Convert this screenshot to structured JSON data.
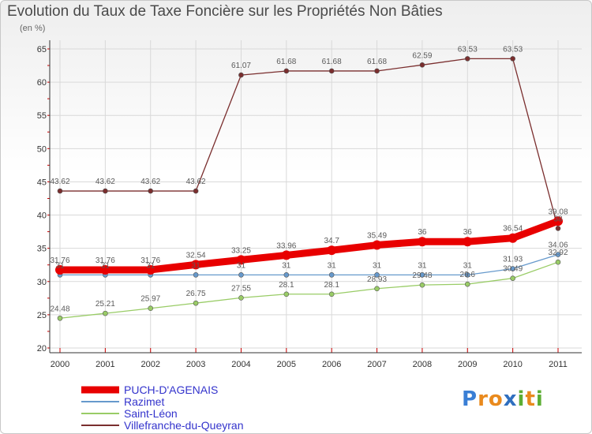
{
  "chart_data": {
    "type": "line",
    "title": "Evolution du Taux de Taxe Foncière sur les Propriétés Non Bâties",
    "subtitle": "(en %)",
    "xlabel": "",
    "ylabel": "",
    "ylim": [
      20,
      65
    ],
    "yticks": [
      20,
      25,
      30,
      35,
      40,
      45,
      50,
      55,
      60,
      65
    ],
    "grid": true,
    "legend_position": "bottom-left",
    "categories": [
      "2000",
      "2001",
      "2002",
      "2003",
      "2004",
      "2005",
      "2006",
      "2007",
      "2008",
      "2009",
      "2010",
      "2011"
    ],
    "series": [
      {
        "name": "PUCH-D'AGENAIS",
        "color": "#e80000",
        "legend_color": "#3333cc",
        "values": [
          31.76,
          31.76,
          31.76,
          32.54,
          33.25,
          33.96,
          34.7,
          35.49,
          36,
          36,
          36.54,
          39.08
        ],
        "labels": [
          "31.76",
          "31.76",
          "31.76",
          "32.54",
          "33.25",
          "33.96",
          "34.7",
          "35.49",
          "36",
          "36",
          "36.54",
          "39.08"
        ]
      },
      {
        "name": "Razimet",
        "color": "#6699cc",
        "legend_color": "#3333cc",
        "values": [
          31,
          31,
          31,
          31,
          31,
          31,
          31,
          31,
          31,
          31,
          31.93,
          34.06
        ],
        "labels": [
          "31",
          "31",
          "31",
          "31",
          "31",
          "31",
          "31",
          "31",
          "31",
          "31",
          "31.93",
          "34.06"
        ]
      },
      {
        "name": "Saint-Léon",
        "color": "#99cc66",
        "legend_color": "#3333cc",
        "values": [
          24.48,
          25.21,
          25.97,
          26.75,
          27.55,
          28.1,
          28.1,
          28.93,
          29.48,
          29.6,
          30.49,
          32.92
        ],
        "labels": [
          "24.48",
          "25.21",
          "25.97",
          "26.75",
          "27.55",
          "28.1",
          "28.1",
          "28.93",
          "29.48",
          "29.6",
          "30.49",
          "32.92"
        ]
      },
      {
        "name": "Villefranche-du-Queyran",
        "color": "#7a2e2e",
        "legend_color": "#3333cc",
        "values": [
          43.62,
          43.62,
          43.62,
          43.62,
          61.07,
          61.68,
          61.68,
          61.68,
          62.59,
          63.53,
          63.53,
          38
        ],
        "labels": [
          "43.62",
          "43.62",
          "43.62",
          "43.62",
          "61.07",
          "61.68",
          "61.68",
          "61.68",
          "62.59",
          "63.53",
          "63.53",
          "38"
        ]
      }
    ]
  },
  "logo": {
    "letters": [
      {
        "ch": "P",
        "color": "#3a7fd5"
      },
      {
        "ch": "r",
        "color": "#e98a1d"
      },
      {
        "ch": "o",
        "color": "#e98a1d"
      },
      {
        "ch": "x",
        "color": "#2f6fbf"
      },
      {
        "ch": "i",
        "color": "#5cae34"
      },
      {
        "ch": "t",
        "color": "#e98a1d"
      },
      {
        "ch": "i",
        "color": "#5cae34"
      }
    ]
  }
}
